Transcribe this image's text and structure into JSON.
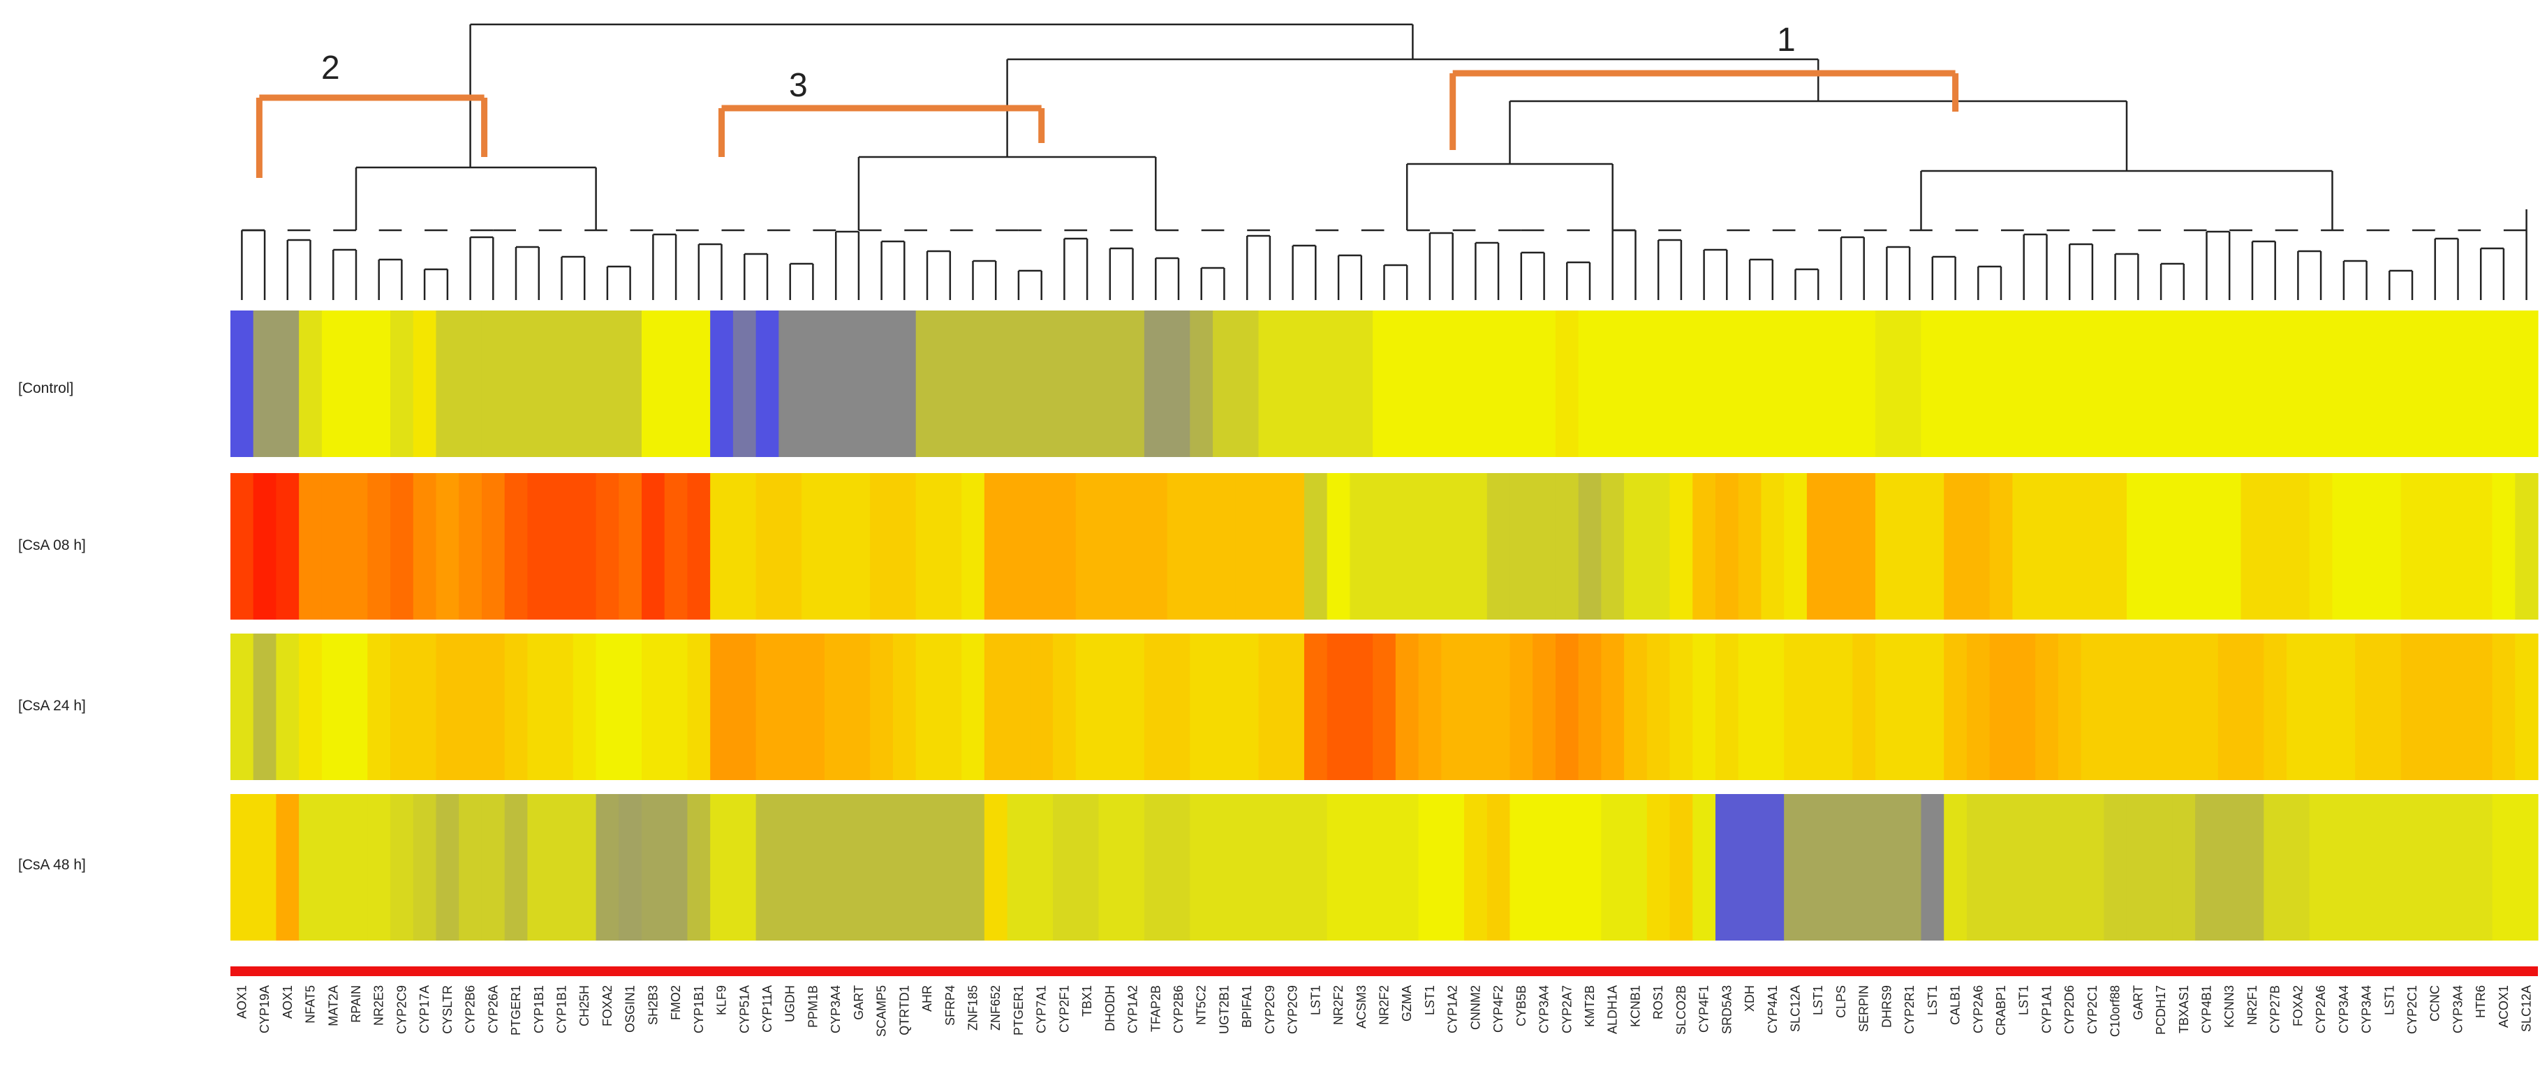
{
  "chart_data": {
    "type": "heatmap",
    "title": "",
    "rows": [
      "[Control]",
      "[CsA 08 h]",
      "[CsA 24 h]",
      "[CsA 48 h]"
    ],
    "cluster_labels": [
      "1",
      "2",
      "3"
    ],
    "colorscale": {
      "low": "#4040ff",
      "mid_gray": "#888888",
      "mid_yellow": "#f2f200",
      "high": "#ff2000"
    },
    "columns": [
      "AOX1",
      "CYP19A",
      "AOX1",
      "NFAT5",
      "MAT2A",
      "RPAIN",
      "NR2E3",
      "CYP2C9",
      "CYP17A",
      "CYSLTR",
      "CYP2B6",
      "CYP26A",
      "PTGER1",
      "CYP1B1",
      "CYP1B1",
      "CH25H",
      "FOXA2",
      "OSGIN1",
      "SH2B3",
      "FMO2",
      "CYP1B1",
      "KLF9",
      "CYP51A",
      "CYP11A",
      "UGDH",
      "PPM1B",
      "CYP3A4",
      "GART",
      "SCAMP5",
      "QTRTD1",
      "AHR",
      "SFRP4",
      "ZNF185",
      "ZNF652",
      "PTGER1",
      "CYP7A1",
      "CYP2F1",
      "TBX1",
      "DHODH",
      "CYP1A2",
      "TFAP2B",
      "CYP2B6",
      "NT5C2",
      "UGT2B1",
      "BPIFA1",
      "CYP2C9",
      "CYP2C9",
      "LST1",
      "NR2F2",
      "ACSM3",
      "NR2F2",
      "GZMA",
      "LST1",
      "CYP1A2",
      "CNNM2",
      "CYP4F2",
      "CYB5B",
      "CYP3A4",
      "CYP2A7",
      "KMT2B",
      "ALDH1A",
      "KCNB1",
      "ROS1",
      "SLCO2B",
      "CYP4F1",
      "SRD5A3",
      "XDH",
      "CYP4A1",
      "SLC12A",
      "LST1",
      "CLPS",
      "SERPIN",
      "DHRS9",
      "CYP2R1",
      "LST1",
      "CALB1",
      "CYP2A6",
      "CRABP1",
      "LST1",
      "CYP1A1",
      "CYP2D6",
      "CYP2C1",
      "C10orf88",
      "GART",
      "PCDH17",
      "TBXAS1",
      "CYP4B1",
      "KCNN3",
      "NR2F1",
      "CYP27B",
      "FOXA2",
      "CYP2A6",
      "CYP3A4",
      "CYP3A4",
      "LST1",
      "CYP2C1",
      "CCNC",
      "CYP3A4",
      "HTR6",
      "ACOX1",
      "SLC12A"
    ],
    "values": [
      [
        -0.9,
        -0.4,
        -0.4,
        0.1,
        0.2,
        0.2,
        0.2,
        0.1,
        0.25,
        0,
        0,
        0,
        0,
        0,
        0,
        0,
        0,
        0,
        0.2,
        0.2,
        0.2,
        -0.9,
        -0.7,
        -0.9,
        -0.6,
        -0.6,
        -0.6,
        -0.6,
        -0.6,
        -0.6,
        -0.1,
        -0.1,
        -0.1,
        -0.1,
        -0.1,
        -0.1,
        -0.1,
        -0.1,
        -0.1,
        -0.1,
        -0.4,
        -0.4,
        -0.2,
        0,
        0,
        0.1,
        0.1,
        0.1,
        0.1,
        0.1,
        0.2,
        0.2,
        0.2,
        0.2,
        0.2,
        0.2,
        0.2,
        0.2,
        0.25,
        0.2,
        0.2,
        0.2,
        0.2,
        0.2,
        0.2,
        0.2,
        0.2,
        0.2,
        0.2,
        0.2,
        0.2,
        0.2,
        0.15,
        0.15,
        0.2,
        0.2,
        0.2,
        0.2,
        0.2,
        0.2,
        0.2,
        0.2,
        0.2,
        0.2,
        0.2,
        0.2,
        0.2,
        0.2,
        0.2,
        0.2,
        0.2,
        0.2,
        0.2,
        0.2,
        0.2,
        0.2,
        0.2,
        0.2,
        0.2,
        0.2,
        0.2
      ],
      [
        0.85,
        0.95,
        0.9,
        0.6,
        0.6,
        0.6,
        0.65,
        0.7,
        0.6,
        0.55,
        0.6,
        0.65,
        0.75,
        0.8,
        0.8,
        0.8,
        0.75,
        0.7,
        0.85,
        0.75,
        0.8,
        0.3,
        0.3,
        0.35,
        0.35,
        0.3,
        0.3,
        0.3,
        0.35,
        0.35,
        0.3,
        0.3,
        0.25,
        0.5,
        0.5,
        0.5,
        0.5,
        0.45,
        0.45,
        0.45,
        0.45,
        0.4,
        0.4,
        0.4,
        0.4,
        0.4,
        0.4,
        0.0,
        0.2,
        0.1,
        0.1,
        0.1,
        0.1,
        0.1,
        0.1,
        0.0,
        0.0,
        0.0,
        0.0,
        -0.1,
        0.0,
        0.1,
        0.1,
        0.25,
        0.4,
        0.45,
        0.4,
        0.3,
        0.25,
        0.5,
        0.5,
        0.5,
        0.3,
        0.3,
        0.3,
        0.45,
        0.45,
        0.4,
        0.3,
        0.3,
        0.3,
        0.3,
        0.3,
        0.2,
        0.2,
        0.2,
        0.2,
        0.2,
        0.3,
        0.3,
        0.3,
        0.25,
        0.2,
        0.2,
        0.2,
        0.25,
        0.25,
        0.25,
        0.25,
        0.2,
        0.1
      ],
      [
        0.1,
        -0.1,
        0.1,
        0.25,
        0.2,
        0.2,
        0.3,
        0.35,
        0.35,
        0.4,
        0.4,
        0.4,
        0.35,
        0.3,
        0.3,
        0.25,
        0.2,
        0.2,
        0.25,
        0.25,
        0.3,
        0.55,
        0.55,
        0.5,
        0.5,
        0.5,
        0.45,
        0.45,
        0.4,
        0.35,
        0.3,
        0.3,
        0.25,
        0.4,
        0.4,
        0.4,
        0.35,
        0.3,
        0.3,
        0.3,
        0.35,
        0.35,
        0.3,
        0.3,
        0.3,
        0.35,
        0.35,
        0.7,
        0.75,
        0.75,
        0.7,
        0.55,
        0.5,
        0.45,
        0.45,
        0.45,
        0.5,
        0.55,
        0.6,
        0.55,
        0.5,
        0.4,
        0.35,
        0.3,
        0.25,
        0.3,
        0.25,
        0.25,
        0.3,
        0.3,
        0.3,
        0.35,
        0.3,
        0.3,
        0.3,
        0.4,
        0.45,
        0.5,
        0.5,
        0.45,
        0.4,
        0.35,
        0.35,
        0.35,
        0.35,
        0.35,
        0.35,
        0.4,
        0.4,
        0.35,
        0.3,
        0.3,
        0.3,
        0.35,
        0.35,
        0.4,
        0.4,
        0.4,
        0.4,
        0.35,
        0.3
      ],
      [
        0.3,
        0.3,
        0.5,
        0.1,
        0.1,
        0.1,
        0.1,
        0.05,
        0.0,
        -0.1,
        0.0,
        0.0,
        -0.1,
        0.05,
        0.05,
        0.05,
        -0.3,
        -0.35,
        -0.3,
        -0.3,
        -0.1,
        0.1,
        0.1,
        -0.1,
        -0.1,
        -0.1,
        -0.1,
        -0.1,
        -0.1,
        -0.1,
        -0.1,
        -0.1,
        -0.1,
        0.3,
        0.1,
        0.1,
        0.05,
        0.05,
        0.1,
        0.1,
        0.05,
        0.05,
        0.1,
        0.1,
        0.1,
        0.1,
        0.1,
        0.1,
        0.15,
        0.15,
        0.15,
        0.15,
        0.2,
        0.2,
        0.3,
        0.35,
        0.2,
        0.2,
        0.2,
        0.2,
        0.15,
        0.15,
        0.3,
        0.35,
        0.15,
        -0.85,
        -0.85,
        -0.85,
        -0.3,
        -0.3,
        -0.3,
        -0.3,
        -0.3,
        -0.3,
        -0.6,
        0.1,
        0.05,
        0.05,
        0.05,
        0.05,
        0.05,
        0.05,
        0.0,
        0.0,
        0.0,
        0.0,
        -0.1,
        -0.1,
        -0.1,
        0.05,
        0.05,
        0.1,
        0.1,
        0.1,
        0.1,
        0.1,
        0.1,
        0.1,
        0.1,
        0.15,
        0.15
      ]
    ]
  }
}
